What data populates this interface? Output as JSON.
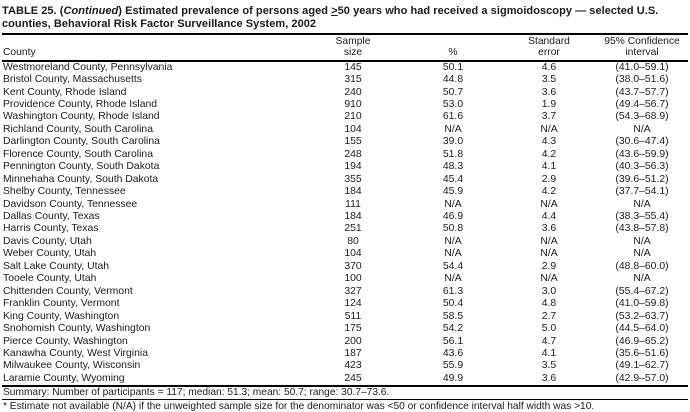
{
  "title": {
    "prefix": "TABLE 25. (",
    "continued": "Continued",
    "after_continued": ") Estimated prevalence of persons aged ",
    "threshold_symbol": ">",
    "threshold_number": "50",
    "suffix": " years who had received a sigmoidoscopy — selected U.S. counties, Behavioral Risk Factor Surveillance System, 2002"
  },
  "table": {
    "columns": {
      "county": "County",
      "sample_size": "Sample\nsize",
      "percent": "%",
      "standard_error": "Standard\nerror",
      "confidence_interval": "95% Confidence\ninterval"
    },
    "rows": [
      {
        "county": "Westmoreland County, Pennsylvania",
        "sample_size": "145",
        "percent": "50.1",
        "standard_error": "4.6",
        "confidence_interval": "(41.0–59.1)"
      },
      {
        "county": "Bristol County, Massachusetts",
        "sample_size": "315",
        "percent": "44.8",
        "standard_error": "3.5",
        "confidence_interval": "(38.0–51.6)"
      },
      {
        "county": "Kent County, Rhode Island",
        "sample_size": "240",
        "percent": "50.7",
        "standard_error": "3.6",
        "confidence_interval": "(43.7–57.7)"
      },
      {
        "county": "Providence County, Rhode Island",
        "sample_size": "910",
        "percent": "53.0",
        "standard_error": "1.9",
        "confidence_interval": "(49.4–56.7)"
      },
      {
        "county": "Washington County, Rhode Island",
        "sample_size": "210",
        "percent": "61.6",
        "standard_error": "3.7",
        "confidence_interval": "(54.3–68.9)"
      },
      {
        "county": "Richland County, South Carolina",
        "sample_size": "104",
        "percent": "N/A",
        "standard_error": "N/A",
        "confidence_interval": "N/A"
      },
      {
        "county": "Darlington County, South Carolina",
        "sample_size": "155",
        "percent": "39.0",
        "standard_error": "4.3",
        "confidence_interval": "(30.6–47.4)"
      },
      {
        "county": "Florence County, South Carolina",
        "sample_size": "248",
        "percent": "51.8",
        "standard_error": "4.2",
        "confidence_interval": "(43.6–59.9)"
      },
      {
        "county": "Pennington County, South Dakota",
        "sample_size": "194",
        "percent": "48.3",
        "standard_error": "4.1",
        "confidence_interval": "(40.3–56.3)"
      },
      {
        "county": "Minnehaha County, South Dakota",
        "sample_size": "355",
        "percent": "45.4",
        "standard_error": "2.9",
        "confidence_interval": "(39.6–51.2)"
      },
      {
        "county": "Shelby County, Tennessee",
        "sample_size": "184",
        "percent": "45.9",
        "standard_error": "4.2",
        "confidence_interval": "(37.7–54.1)"
      },
      {
        "county": "Davidson County, Tennessee",
        "sample_size": "111",
        "percent": "N/A",
        "standard_error": "N/A",
        "confidence_interval": "N/A"
      },
      {
        "county": "Dallas County, Texas",
        "sample_size": "184",
        "percent": "46.9",
        "standard_error": "4.4",
        "confidence_interval": "(38.3–55.4)"
      },
      {
        "county": "Harris County, Texas",
        "sample_size": "251",
        "percent": "50.8",
        "standard_error": "3.6",
        "confidence_interval": "(43.8–57.8)"
      },
      {
        "county": "Davis County, Utah",
        "sample_size": "80",
        "percent": "N/A",
        "standard_error": "N/A",
        "confidence_interval": "N/A"
      },
      {
        "county": "Weber County, Utah",
        "sample_size": "104",
        "percent": "N/A",
        "standard_error": "N/A",
        "confidence_interval": "N/A"
      },
      {
        "county": "Salt Lake County, Utah",
        "sample_size": "370",
        "percent": "54.4",
        "standard_error": "2.9",
        "confidence_interval": "(48.8–60.0)"
      },
      {
        "county": "Tooele County, Utah",
        "sample_size": "100",
        "percent": "N/A",
        "standard_error": "N/A",
        "confidence_interval": "N/A"
      },
      {
        "county": "Chittenden County, Vermont",
        "sample_size": "327",
        "percent": "61.3",
        "standard_error": "3.0",
        "confidence_interval": "(55.4–67.2)"
      },
      {
        "county": "Franklin County, Vermont",
        "sample_size": "124",
        "percent": "50.4",
        "standard_error": "4.8",
        "confidence_interval": "(41.0–59.8)"
      },
      {
        "county": "King County, Washington",
        "sample_size": "511",
        "percent": "58.5",
        "standard_error": "2.7",
        "confidence_interval": "(53.2–63.7)"
      },
      {
        "county": "Snohomish County, Washington",
        "sample_size": "175",
        "percent": "54.2",
        "standard_error": "5.0",
        "confidence_interval": "(44.5–64.0)"
      },
      {
        "county": "Pierce County, Washington",
        "sample_size": "200",
        "percent": "56.1",
        "standard_error": "4.7",
        "confidence_interval": "(46.9–65.2)"
      },
      {
        "county": "Kanawha County, West Virginia",
        "sample_size": "187",
        "percent": "43.6",
        "standard_error": "4.1",
        "confidence_interval": "(35.6–51.6)"
      },
      {
        "county": "Milwaukee County, Wisconsin",
        "sample_size": "423",
        "percent": "55.9",
        "standard_error": "3.5",
        "confidence_interval": "(49.1–62.7)"
      },
      {
        "county": "Laramie County, Wyoming",
        "sample_size": "245",
        "percent": "49.9",
        "standard_error": "3.6",
        "confidence_interval": "(42.9–57.0)"
      }
    ]
  },
  "summary": "Summary: Number of participants = 117; median: 51.3; mean: 50.7; range: 30.7–73.6.",
  "footnote": "* Estimate not available (N/A) if the unweighted sample size for the denominator was <50 or confidence interval half width was >10."
}
